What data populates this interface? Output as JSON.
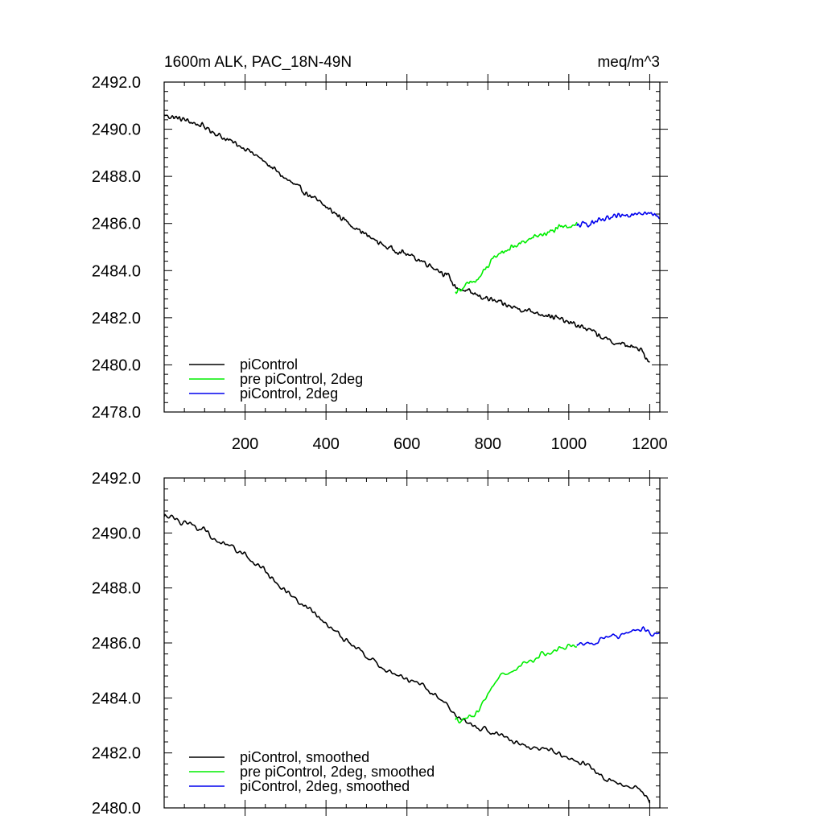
{
  "chart_data": [
    {
      "type": "line",
      "title": "1600m ALK, PAC_18N-49N",
      "units": "meq/m^3",
      "xlim": [
        0,
        1225
      ],
      "ylim": [
        2478,
        2492
      ],
      "x_ticks": [
        200,
        400,
        600,
        800,
        1000,
        1200
      ],
      "x_tick_labels": [
        "200",
        "400",
        "600",
        "800",
        "1000",
        "1200"
      ],
      "y_ticks": [
        2478,
        2480,
        2482,
        2484,
        2486,
        2488,
        2490,
        2492
      ],
      "y_tick_labels": [
        "2478.0",
        "2480.0",
        "2482.0",
        "2484.0",
        "2486.0",
        "2488.0",
        "2490.0",
        "2492.0"
      ],
      "legend": "bottom-left",
      "series": [
        {
          "name": "piControl",
          "color": "#000000",
          "x": [
            0,
            50,
            100,
            150,
            200,
            250,
            300,
            350,
            400,
            450,
            500,
            550,
            600,
            650,
            700,
            720,
            750,
            800,
            850,
            900,
            950,
            1000,
            1050,
            1100,
            1150,
            1180,
            1200
          ],
          "y": [
            2490.6,
            2490.4,
            2490.1,
            2489.6,
            2489.2,
            2488.6,
            2487.9,
            2487.3,
            2486.7,
            2486.1,
            2485.5,
            2485.0,
            2484.7,
            2484.3,
            2483.8,
            2483.3,
            2483.1,
            2482.8,
            2482.5,
            2482.3,
            2482.1,
            2481.8,
            2481.5,
            2481.0,
            2480.8,
            2480.6,
            2480.1
          ]
        },
        {
          "name": "pre piControl, 2deg",
          "color": "#00ee00",
          "x": [
            720,
            750,
            775,
            800,
            825,
            850,
            875,
            900,
            925,
            950,
            975,
            1000,
            1020
          ],
          "y": [
            2483.1,
            2483.4,
            2483.6,
            2484.2,
            2484.7,
            2484.9,
            2485.1,
            2485.3,
            2485.5,
            2485.6,
            2485.8,
            2485.9,
            2486.0
          ]
        },
        {
          "name": "piControl, 2deg",
          "color": "#0000ee",
          "x": [
            1020,
            1050,
            1075,
            1100,
            1125,
            1150,
            1175,
            1200,
            1225
          ],
          "y": [
            2485.9,
            2486.0,
            2486.1,
            2486.2,
            2486.3,
            2486.4,
            2486.5,
            2486.4,
            2486.3
          ]
        }
      ]
    },
    {
      "type": "line",
      "xlim": [
        0,
        1225
      ],
      "ylim": [
        2480,
        2492
      ],
      "y_ticks": [
        2480,
        2482,
        2484,
        2486,
        2488,
        2490,
        2492
      ],
      "y_tick_labels": [
        "2480.0",
        "2482.0",
        "2484.0",
        "2486.0",
        "2488.0",
        "2490.0",
        "2492.0"
      ],
      "legend": "bottom-left",
      "series": [
        {
          "name": "piControl, smoothed",
          "color": "#000000",
          "x": [
            0,
            50,
            100,
            150,
            200,
            250,
            300,
            350,
            400,
            450,
            500,
            550,
            600,
            650,
            700,
            720,
            750,
            800,
            850,
            900,
            950,
            1000,
            1050,
            1100,
            1150,
            1180,
            1200
          ],
          "y": [
            2490.6,
            2490.4,
            2490.1,
            2489.6,
            2489.2,
            2488.6,
            2487.9,
            2487.3,
            2486.7,
            2486.1,
            2485.5,
            2485.0,
            2484.7,
            2484.3,
            2483.8,
            2483.3,
            2483.1,
            2482.8,
            2482.5,
            2482.3,
            2482.1,
            2481.8,
            2481.5,
            2481.0,
            2480.8,
            2480.6,
            2480.2
          ]
        },
        {
          "name": "pre piControl, 2deg, smoothed",
          "color": "#00ee00",
          "x": [
            720,
            750,
            775,
            800,
            825,
            850,
            875,
            900,
            925,
            950,
            975,
            1000,
            1020
          ],
          "y": [
            2483.2,
            2483.3,
            2483.5,
            2484.2,
            2484.7,
            2484.9,
            2485.1,
            2485.3,
            2485.5,
            2485.6,
            2485.8,
            2485.9,
            2486.0
          ]
        },
        {
          "name": "piControl, 2deg, smoothed",
          "color": "#0000ee",
          "x": [
            1020,
            1050,
            1075,
            1100,
            1125,
            1150,
            1175,
            1200,
            1225
          ],
          "y": [
            2485.9,
            2486.0,
            2486.1,
            2486.2,
            2486.3,
            2486.4,
            2486.5,
            2486.4,
            2486.3
          ]
        }
      ]
    }
  ]
}
